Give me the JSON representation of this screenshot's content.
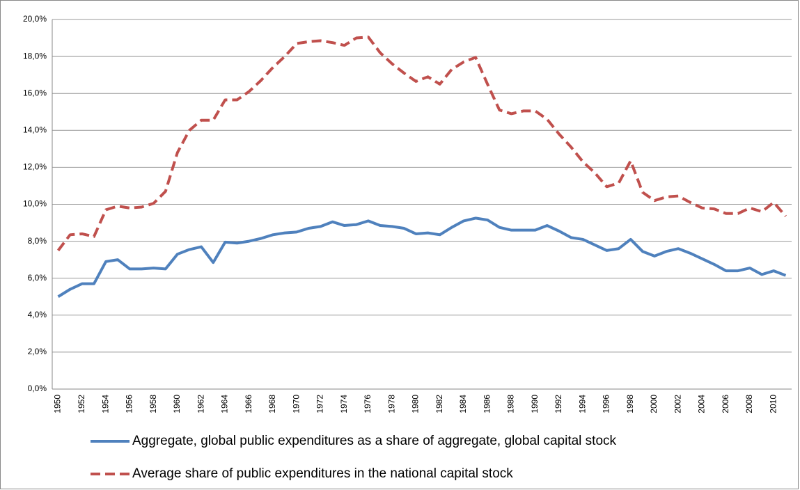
{
  "chart_data": {
    "type": "line",
    "categories": [
      "1950",
      null,
      "1952",
      null,
      "1954",
      null,
      "1956",
      null,
      "1958",
      null,
      "1960",
      null,
      "1962",
      null,
      "1964",
      null,
      "1966",
      null,
      "1968",
      null,
      "1970",
      null,
      "1972",
      null,
      "1974",
      null,
      "1976",
      null,
      "1978",
      null,
      "1980",
      null,
      "1982",
      null,
      "1984",
      null,
      "1986",
      null,
      "1988",
      null,
      "1990",
      null,
      "1992",
      null,
      "1994",
      null,
      "1996",
      null,
      "1998",
      null,
      "2000",
      null,
      "2002",
      null,
      "2004",
      null,
      "2006",
      null,
      "2008",
      null,
      "2010",
      null
    ],
    "series": [
      {
        "name": "Aggregate, global public expenditures as a share of aggregate, global capital stock",
        "color": "#4f81bd",
        "dashed": false,
        "values": [
          5.0,
          5.4,
          5.7,
          5.7,
          6.9,
          7.0,
          6.5,
          6.5,
          6.55,
          6.5,
          7.3,
          7.55,
          7.7,
          6.85,
          7.95,
          7.9,
          8.0,
          8.15,
          8.35,
          8.45,
          8.5,
          8.7,
          8.8,
          9.05,
          8.85,
          8.9,
          9.1,
          8.85,
          8.8,
          8.7,
          8.4,
          8.45,
          8.35,
          8.75,
          9.1,
          9.25,
          9.15,
          8.75,
          8.6,
          8.6,
          8.6,
          8.85,
          8.55,
          8.2,
          8.1,
          7.8,
          7.5,
          7.6,
          8.1,
          7.45,
          7.2,
          7.45,
          7.6,
          7.35,
          7.05,
          6.75,
          6.4,
          6.4,
          6.55,
          6.2,
          6.4,
          6.15
        ]
      },
      {
        "name": "Average share of public expenditures in the national capital stock",
        "color": "#c0504d",
        "dashed": true,
        "values": [
          7.5,
          8.35,
          8.4,
          8.25,
          9.7,
          9.9,
          9.8,
          9.85,
          10.05,
          10.7,
          12.8,
          14.0,
          14.55,
          14.55,
          15.65,
          15.65,
          16.1,
          16.7,
          17.4,
          18.0,
          18.7,
          18.8,
          18.85,
          18.75,
          18.6,
          19.0,
          19.05,
          18.2,
          17.6,
          17.1,
          16.65,
          16.9,
          16.5,
          17.3,
          17.7,
          17.95,
          16.5,
          15.1,
          14.9,
          15.05,
          15.05,
          14.6,
          13.8,
          13.1,
          12.3,
          11.7,
          10.95,
          11.15,
          12.35,
          10.65,
          10.2,
          10.4,
          10.45,
          10.1,
          9.8,
          9.75,
          9.5,
          9.5,
          9.8,
          9.6,
          10.1,
          9.35
        ]
      }
    ],
    "ylim": [
      0,
      20
    ],
    "yticks": [
      {
        "value": 0,
        "label": "0,0%"
      },
      {
        "value": 2,
        "label": "2,0%"
      },
      {
        "value": 4,
        "label": "4,0%"
      },
      {
        "value": 6,
        "label": "6,0%"
      },
      {
        "value": 8,
        "label": "8,0%"
      },
      {
        "value": 10,
        "label": "10,0%"
      },
      {
        "value": 12,
        "label": "12,0%"
      },
      {
        "value": 14,
        "label": "14,0%"
      },
      {
        "value": 16,
        "label": "16,0%"
      },
      {
        "value": 18,
        "label": "18,0%"
      },
      {
        "value": 20,
        "label": "20,0%"
      }
    ],
    "grid": true,
    "legend": "bottom"
  }
}
